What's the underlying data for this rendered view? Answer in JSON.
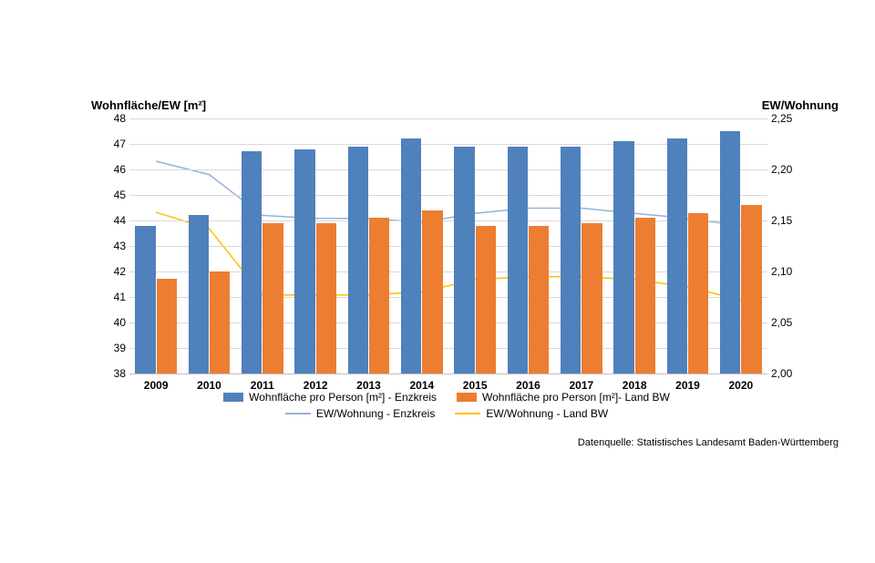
{
  "chart": {
    "type": "bar+line",
    "background_color": "#ffffff",
    "grid_color": "#d9d9d9",
    "axis_color": "#bfbfbf",
    "font_family": "Arial",
    "categories": [
      "2009",
      "2010",
      "2011",
      "2012",
      "2013",
      "2014",
      "2015",
      "2016",
      "2017",
      "2018",
      "2019",
      "2020"
    ],
    "y_left": {
      "title": "Wohnfläche/EW [m²]",
      "min": 38,
      "max": 48,
      "tick_step": 1,
      "title_fontsize": 13,
      "title_fontweight": 700,
      "tick_fontsize": 12
    },
    "y_right": {
      "title": "EW/Wohnung",
      "min": 2.0,
      "max": 2.25,
      "tick_step": 0.05,
      "title_fontsize": 13,
      "title_fontweight": 700,
      "tick_fontsize": 12,
      "decimal_sep": ","
    },
    "x": {
      "tick_fontsize": 12,
      "tick_fontweight": 700
    },
    "bars": {
      "group_gap_frac": 0.22,
      "bar_gap_frac": 0.02,
      "series": [
        {
          "name": "Wohnfläche pro Person [m²] - Enzkreis",
          "color": "#4f81bd",
          "values": [
            43.8,
            44.2,
            46.7,
            46.8,
            46.9,
            47.2,
            46.9,
            46.9,
            46.9,
            47.1,
            47.2,
            47.5
          ]
        },
        {
          "name": "Wohnfläche pro Person [m²]- Land BW",
          "color": "#ed7d31",
          "values": [
            41.7,
            42.0,
            43.9,
            43.9,
            44.1,
            44.4,
            43.8,
            43.8,
            43.9,
            44.1,
            44.3,
            44.6
          ]
        }
      ]
    },
    "lines": {
      "line_width": 1.5,
      "series": [
        {
          "name": "EW/Wohnung - Enzkreis",
          "color": "#95b3d7",
          "values": [
            2.208,
            2.195,
            2.155,
            2.152,
            2.152,
            2.148,
            2.157,
            2.162,
            2.162,
            2.157,
            2.152,
            2.145
          ]
        },
        {
          "name": "EW/Wohnung - Land BW",
          "color": "#ffc000",
          "values": [
            2.158,
            2.142,
            2.077,
            2.077,
            2.077,
            2.08,
            2.092,
            2.095,
            2.095,
            2.092,
            2.085,
            2.072
          ]
        }
      ]
    },
    "legend": {
      "fontsize": 12,
      "items": [
        {
          "kind": "bar",
          "ref": 0
        },
        {
          "kind": "bar",
          "ref": 1
        },
        {
          "kind": "line",
          "ref": 0
        },
        {
          "kind": "line",
          "ref": 1
        }
      ]
    },
    "source_text": "Datenquelle: Statistisches Landesamt Baden-Württemberg",
    "source_fontsize": 11
  }
}
